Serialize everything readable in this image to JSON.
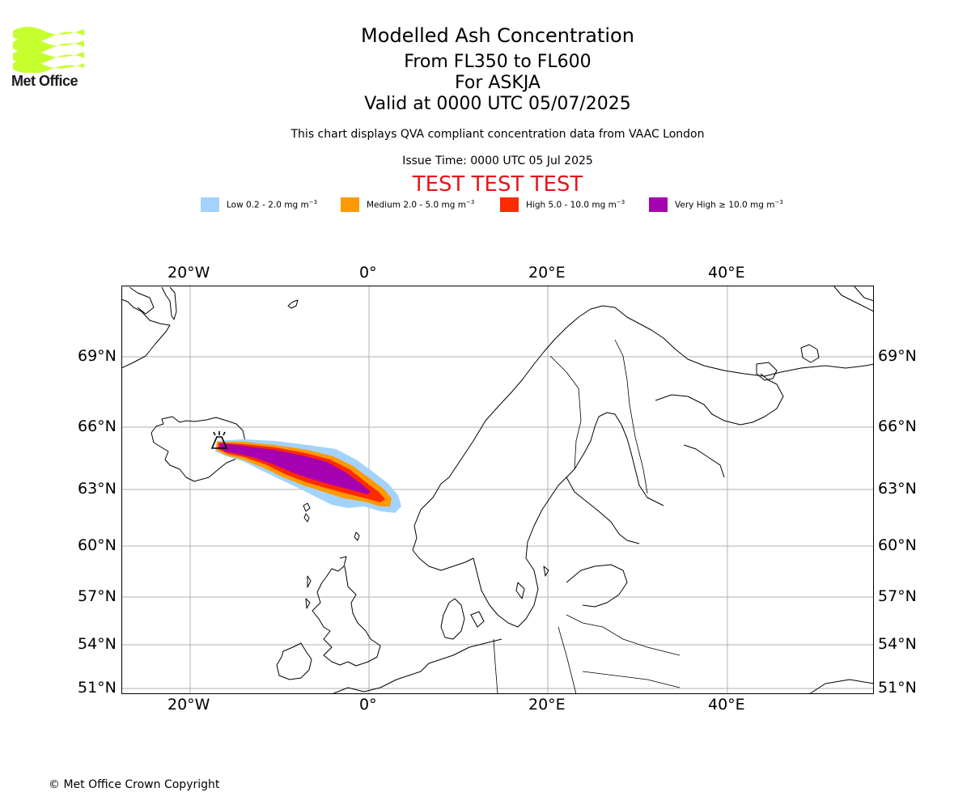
{
  "logo": {
    "text": "Met Office",
    "color": "#c6ff2e"
  },
  "header": {
    "title": "Modelled Ash Concentration",
    "levels": "From FL350 to FL600",
    "volcano": "For ASKJA",
    "valid": "Valid at 0000 UTC 05/07/2025",
    "description": "This chart displays QVA compliant concentration data from VAAC London",
    "issue_time": "Issue Time: 0000 UTC 05 Jul 2025",
    "test_banner": "TEST TEST TEST",
    "test_color": "#e8141a"
  },
  "legend": [
    {
      "name": "Low",
      "range": "0.2 - 2.0 mg m",
      "color": "#a3d3fd"
    },
    {
      "name": "Medium",
      "range": "2.0 - 5.0 mg m",
      "color": "#fd9a03"
    },
    {
      "name": "High",
      "range": "5.0 - 10.0 mg m",
      "color": "#fe2a01"
    },
    {
      "name": "Very High",
      "range": "≥  10.0 mg m",
      "color": "#a702b1"
    }
  ],
  "legend_unit_sup": "−3",
  "map": {
    "lon_labels": [
      "20°W",
      "0°",
      "20°E",
      "40°E"
    ],
    "lat_labels": [
      "69°N",
      "66°N",
      "63°N",
      "60°N",
      "57°N",
      "54°N",
      "51°N"
    ],
    "gridline_color": "#b0b0b0",
    "coastline_color": "#000000",
    "volcano_marker": "volcano-marker-icon"
  },
  "footer": {
    "copyright": "© Met Office Crown Copyright"
  }
}
